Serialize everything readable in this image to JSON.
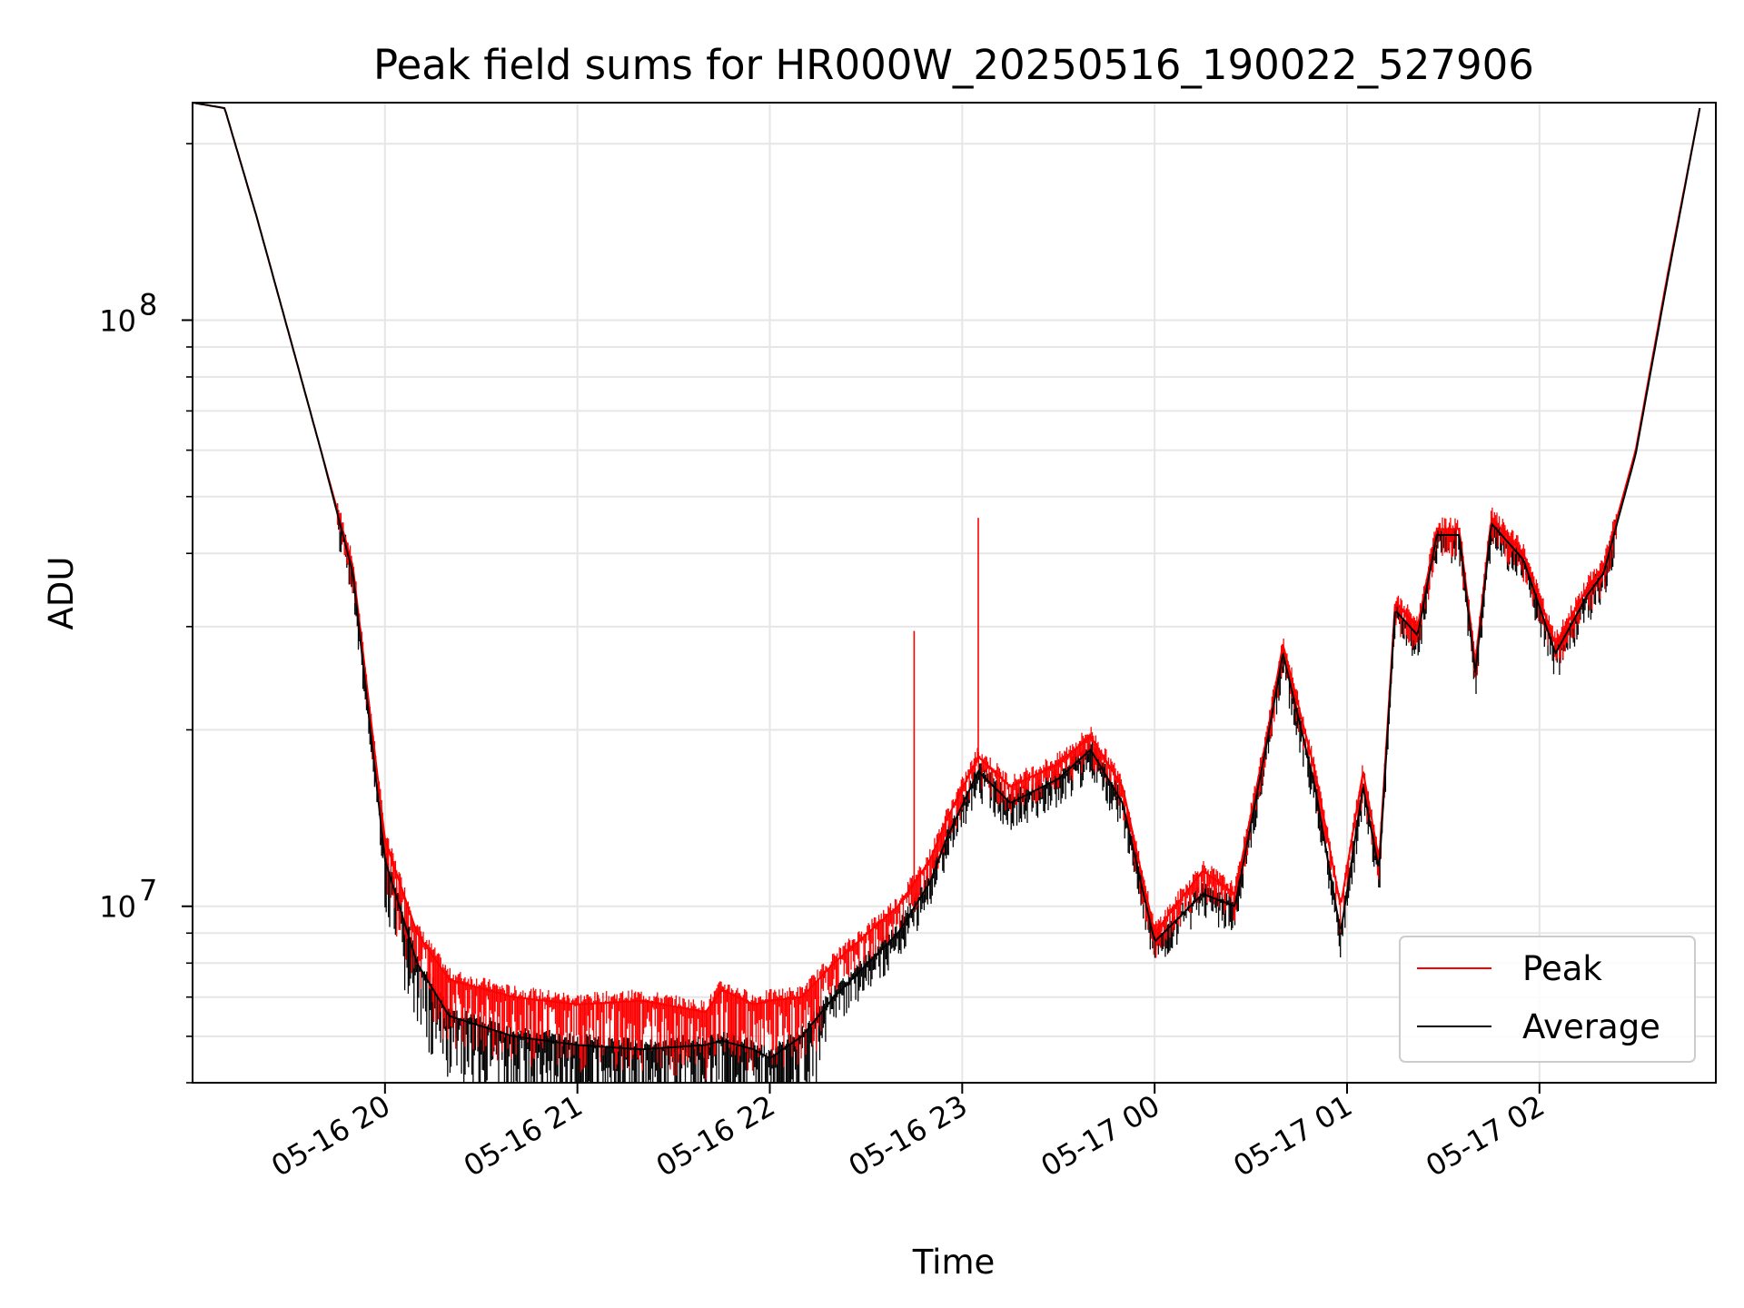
{
  "chart_data": {
    "type": "line",
    "title": "Peak field sums for HR000W_20250516_190022_527906",
    "xlabel": "Time",
    "ylabel": "ADU",
    "y_scale": "log",
    "xlim": [
      "05-16 19:00",
      "05-17 02:55"
    ],
    "ylim": [
      5000000,
      235000000
    ],
    "grid": true,
    "legend_position": "lower right",
    "x_ticks": [
      "05-16 20",
      "05-16 21",
      "05-16 22",
      "05-16 23",
      "05-17 00",
      "05-17 01",
      "05-17 02"
    ],
    "y_ticks": [
      {
        "base": "10",
        "exp": "7",
        "value": 10000000
      },
      {
        "base": "10",
        "exp": "8",
        "value": 100000000
      }
    ],
    "series": [
      {
        "name": "Peak",
        "color": "#ff0000",
        "points": [
          [
            "05-16 19:00",
            235000000
          ],
          [
            "05-16 19:10",
            230000000
          ],
          [
            "05-16 19:20",
            150000000
          ],
          [
            "05-16 19:30",
            95000000
          ],
          [
            "05-16 19:40",
            60000000
          ],
          [
            "05-16 19:50",
            38000000
          ],
          [
            "05-16 20:00",
            13000000
          ],
          [
            "05-16 20:10",
            9000000
          ],
          [
            "05-16 20:20",
            7500000
          ],
          [
            "05-16 20:40",
            7000000
          ],
          [
            "05-16 21:00",
            6800000
          ],
          [
            "05-16 21:20",
            6900000
          ],
          [
            "05-16 21:40",
            6600000
          ],
          [
            "05-16 21:45",
            7200000
          ],
          [
            "05-16 21:55",
            6800000
          ],
          [
            "05-16 22:00",
            6900000
          ],
          [
            "05-16 22:10",
            7000000
          ],
          [
            "05-16 22:20",
            8000000
          ],
          [
            "05-16 22:40",
            10000000
          ],
          [
            "05-16 22:50",
            12000000
          ],
          [
            "05-16 22:55",
            14000000
          ],
          [
            "05-16 23:05",
            18000000
          ],
          [
            "05-16 23:15",
            16000000
          ],
          [
            "05-16 23:30",
            17500000
          ],
          [
            "05-16 23:40",
            19500000
          ],
          [
            "05-16 23:50",
            16000000
          ],
          [
            "05-17 00:00",
            9000000
          ],
          [
            "05-17 00:15",
            11500000
          ],
          [
            "05-17 00:25",
            10500000
          ],
          [
            "05-17 00:35",
            19500000
          ],
          [
            "05-17 00:40",
            28000000
          ],
          [
            "05-17 00:50",
            17000000
          ],
          [
            "05-17 00:58",
            10000000
          ],
          [
            "05-17 01:05",
            17000000
          ],
          [
            "05-17 01:10",
            12000000
          ],
          [
            "05-17 01:15",
            33000000
          ],
          [
            "05-17 01:22",
            30000000
          ],
          [
            "05-17 01:28",
            44000000
          ],
          [
            "05-17 01:35",
            44000000
          ],
          [
            "05-17 01:40",
            26000000
          ],
          [
            "05-17 01:45",
            46000000
          ],
          [
            "05-17 01:55",
            40000000
          ],
          [
            "05-17 02:05",
            28000000
          ],
          [
            "05-17 02:15",
            35000000
          ],
          [
            "05-17 02:20",
            38000000
          ],
          [
            "05-17 02:30",
            60000000
          ],
          [
            "05-17 02:40",
            120000000
          ],
          [
            "05-17 02:50",
            230000000
          ]
        ],
        "spikes": [
          [
            "05-16 22:45",
            29500000
          ],
          [
            "05-16 23:05",
            46000000
          ]
        ]
      },
      {
        "name": "Average",
        "color": "#000000",
        "points": [
          [
            "05-16 19:00",
            235000000
          ],
          [
            "05-16 19:10",
            230000000
          ],
          [
            "05-16 19:20",
            150000000
          ],
          [
            "05-16 19:30",
            95000000
          ],
          [
            "05-16 19:40",
            60000000
          ],
          [
            "05-16 19:50",
            37000000
          ],
          [
            "05-16 20:00",
            12000000
          ],
          [
            "05-16 20:10",
            8000000
          ],
          [
            "05-16 20:20",
            6500000
          ],
          [
            "05-16 20:40",
            6000000
          ],
          [
            "05-16 21:00",
            5800000
          ],
          [
            "05-16 21:20",
            5700000
          ],
          [
            "05-16 21:40",
            5800000
          ],
          [
            "05-16 21:45",
            5900000
          ],
          [
            "05-16 21:55",
            5700000
          ],
          [
            "05-16 22:00",
            5500000
          ],
          [
            "05-16 22:10",
            6000000
          ],
          [
            "05-16 22:20",
            7000000
          ],
          [
            "05-16 22:40",
            9000000
          ],
          [
            "05-16 22:50",
            11000000
          ],
          [
            "05-16 22:55",
            13000000
          ],
          [
            "05-16 23:05",
            17000000
          ],
          [
            "05-16 23:15",
            15000000
          ],
          [
            "05-16 23:30",
            16500000
          ],
          [
            "05-16 23:40",
            18500000
          ],
          [
            "05-16 23:50",
            15000000
          ],
          [
            "05-17 00:00",
            8700000
          ],
          [
            "05-17 00:15",
            10500000
          ],
          [
            "05-17 00:25",
            10000000
          ],
          [
            "05-17 00:35",
            19000000
          ],
          [
            "05-17 00:40",
            27000000
          ],
          [
            "05-17 00:50",
            16000000
          ],
          [
            "05-17 00:58",
            9000000
          ],
          [
            "05-17 01:05",
            16000000
          ],
          [
            "05-17 01:10",
            11500000
          ],
          [
            "05-17 01:15",
            32000000
          ],
          [
            "05-17 01:22",
            29000000
          ],
          [
            "05-17 01:28",
            43000000
          ],
          [
            "05-17 01:35",
            43000000
          ],
          [
            "05-17 01:40",
            25000000
          ],
          [
            "05-17 01:45",
            45000000
          ],
          [
            "05-17 01:55",
            39000000
          ],
          [
            "05-17 02:05",
            27000000
          ],
          [
            "05-17 02:15",
            34000000
          ],
          [
            "05-17 02:20",
            37000000
          ],
          [
            "05-17 02:30",
            59000000
          ],
          [
            "05-17 02:40",
            118000000
          ],
          [
            "05-17 02:50",
            230000000
          ]
        ]
      }
    ]
  }
}
